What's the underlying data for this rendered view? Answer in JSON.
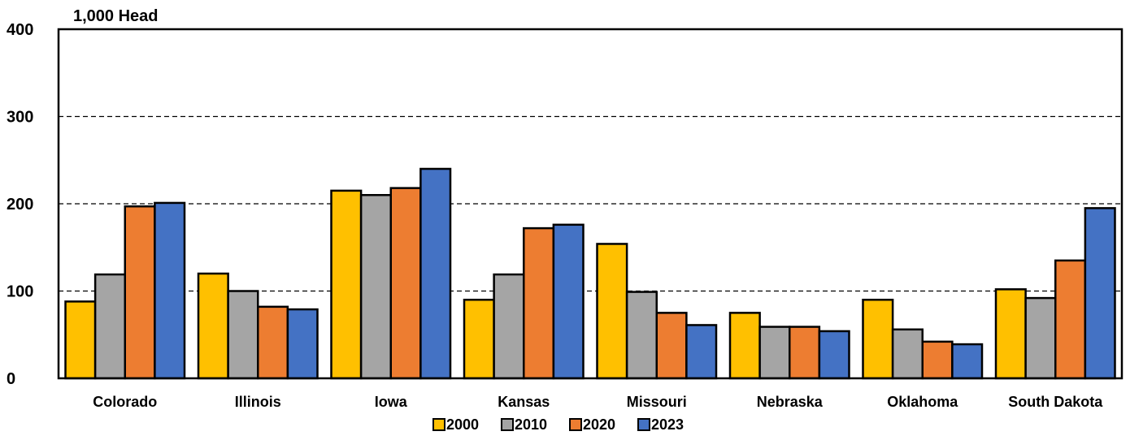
{
  "chart_data": {
    "type": "bar",
    "unit_label": "1,000 Head",
    "categories": [
      "Colorado",
      "Illinois",
      "Iowa",
      "Kansas",
      "Missouri",
      "Nebraska",
      "Oklahoma",
      "South Dakota"
    ],
    "series": [
      {
        "name": "2000",
        "color": "#FFC000",
        "values": [
          88,
          120,
          215,
          90,
          154,
          75,
          90,
          102
        ]
      },
      {
        "name": "2010",
        "color": "#A5A5A5",
        "values": [
          119,
          100,
          210,
          119,
          99,
          59,
          56,
          92
        ]
      },
      {
        "name": "2020",
        "color": "#ED7D31",
        "values": [
          197,
          82,
          218,
          172,
          75,
          59,
          42,
          135
        ]
      },
      {
        "name": "2023",
        "color": "#4472C4",
        "values": [
          201,
          79,
          240,
          176,
          61,
          54,
          39,
          195
        ]
      }
    ],
    "ylim": [
      0,
      400
    ],
    "yticks": [
      "0",
      "100",
      "200",
      "300",
      "400"
    ],
    "grid": "dashed horizontal",
    "legend_position": "bottom-center"
  }
}
